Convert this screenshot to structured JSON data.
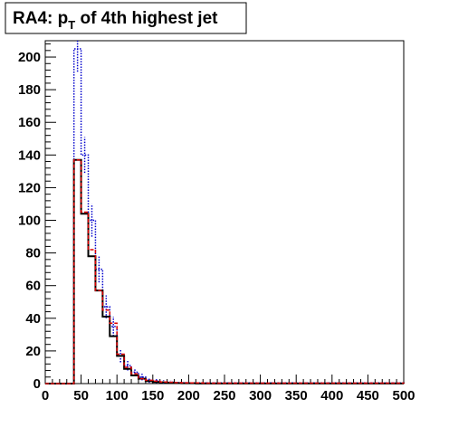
{
  "chart_data": {
    "type": "histogram",
    "title": {
      "prefix": "RA4: p",
      "subscript": "T",
      "suffix": " of 4th highest jet"
    },
    "xlabel": "",
    "ylabel": "",
    "xlim": [
      0,
      500
    ],
    "ylim": [
      0,
      210
    ],
    "x_ticks": [
      0,
      50,
      100,
      150,
      200,
      250,
      300,
      350,
      400,
      450,
      500
    ],
    "y_ticks": [
      0,
      20,
      40,
      60,
      80,
      100,
      120,
      140,
      160,
      180,
      200
    ],
    "bin_width": 10,
    "bin_edges_start": 40,
    "grid": false,
    "legend": "none",
    "series": [
      {
        "style": "solid",
        "color": "#000000",
        "values": [
          137,
          104,
          78,
          57,
          41,
          29,
          17,
          9,
          5,
          3,
          1.5,
          1,
          0.8,
          0.5,
          0.3,
          0.2,
          0.2,
          0.1,
          0.1,
          0.1,
          0.1,
          0.1,
          0.1,
          0.1,
          0.1,
          0.1,
          0.1,
          0.1,
          0.1,
          0.1,
          0.1,
          0.1,
          0.1,
          0.1,
          0.1,
          0.1,
          0.1,
          0.1,
          0.1,
          0.1,
          0.1,
          0.1,
          0.1,
          0.1,
          0.1,
          0.1
        ]
      },
      {
        "style": "dashed",
        "color": "#dd0000",
        "values": [
          137,
          105,
          82,
          57,
          45,
          37,
          18,
          10,
          6,
          3,
          2,
          1.5,
          1,
          0.8,
          0.6,
          0.5,
          0.4,
          0.4,
          0.3,
          0.3,
          0.3,
          0.3,
          0.3,
          0.3,
          0.3,
          0.3,
          0.3,
          0.3,
          0.3,
          0.3,
          0.3,
          0.3,
          0.3,
          0.3,
          0.3,
          0.3,
          0.3,
          0.3,
          0.3,
          0.3,
          0.3,
          0.3,
          0.3,
          0.3,
          0.3,
          0.3
        ]
      },
      {
        "style": "dotted",
        "color": "#0000cc",
        "values": [
          205,
          140,
          100,
          70,
          47,
          35,
          17,
          11,
          7,
          4,
          2,
          1.5,
          1,
          0.8,
          0.6,
          0.5,
          0.4,
          0.3,
          0.3,
          0.3,
          0.3,
          0.3,
          0.3,
          0.3,
          0.3,
          0.3,
          0.3,
          0.3,
          0.3,
          0.3,
          0.3,
          0.3,
          0.3,
          0.3,
          0.3,
          0.3,
          0.3,
          0.3,
          0.3,
          0.3,
          0.3,
          0.3,
          0.3,
          0.3,
          0.3,
          0.3
        ],
        "errors": [
          14,
          11,
          10,
          8,
          7,
          6,
          4,
          3,
          2.5,
          2,
          1.5,
          1.2,
          1,
          0.9,
          0.8,
          0.7,
          0.6,
          0.6,
          0.6,
          0.5,
          0.5,
          0.5,
          0.5,
          0.5,
          0.5,
          0.5,
          0.5,
          0.5,
          0.5,
          0.5,
          0.5,
          0.5,
          0.5,
          0.5,
          0.5,
          0.5,
          0.5,
          0.5,
          0.5,
          0.5,
          0.5,
          0.5,
          0.5,
          0.5,
          0.5,
          0.5
        ]
      }
    ]
  }
}
